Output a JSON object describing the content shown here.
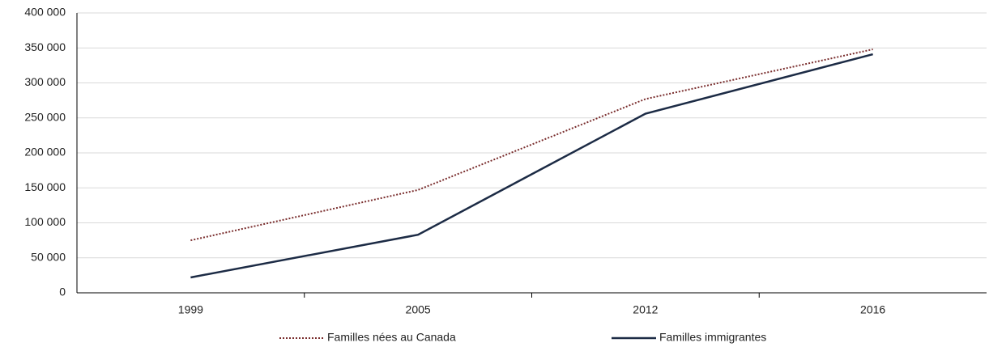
{
  "chart_data": {
    "type": "line",
    "categories": [
      "1999",
      "2005",
      "2012",
      "2016"
    ],
    "series": [
      {
        "name": "Familles nées au Canada",
        "color": "#7a2e2e",
        "dashed": true,
        "values": [
          75000,
          147000,
          277000,
          348000
        ]
      },
      {
        "name": "Familles immigrantes",
        "color": "#1c2b45",
        "dashed": false,
        "values": [
          22000,
          83000,
          256000,
          341000
        ]
      }
    ],
    "ylim": [
      0,
      400000
    ],
    "yticks": [
      0,
      {
        "value": 50000,
        "label": "50 000"
      },
      {
        "value": 100000,
        "label": "100 000"
      },
      {
        "value": 150000,
        "label": "150 000"
      },
      {
        "value": 200000,
        "label": "200 000"
      },
      {
        "value": 250000,
        "label": "250 000"
      },
      {
        "value": 300000,
        "label": "300 000"
      },
      {
        "value": 350000,
        "label": "350 000"
      },
      {
        "value": 400000,
        "label": "400 000"
      }
    ],
    "grid": true,
    "legend": "bottom"
  }
}
